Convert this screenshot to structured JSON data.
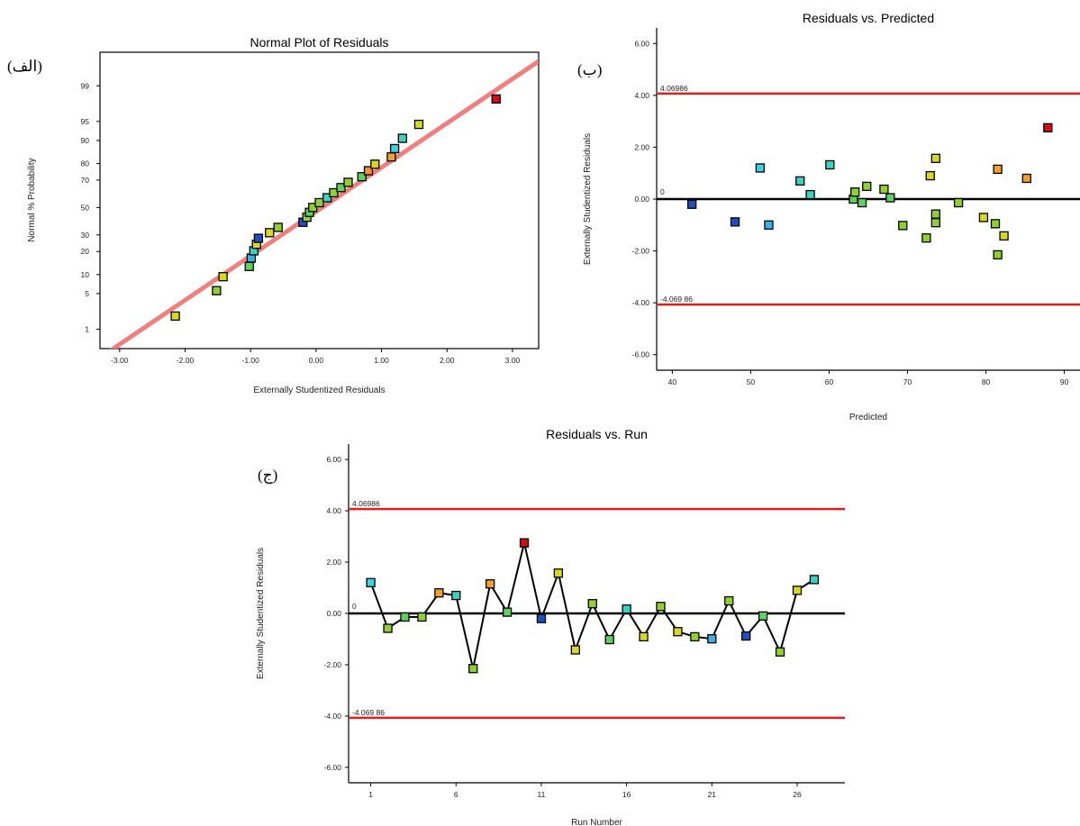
{
  "figure": {
    "panel_labels": [
      "(الف)",
      "(ب)",
      "(ج)"
    ]
  },
  "chart_data": [
    {
      "type": "scatter",
      "title": "Normal Plot of Residuals",
      "xlabel": "Externally Studentized Residuals",
      "ylabel": "Normal % Probability",
      "xlim": [
        -3.3,
        3.4
      ],
      "xticks": [
        -3.0,
        -2.0,
        -1.0,
        0.0,
        1.0,
        2.0,
        3.0
      ],
      "xtick_labels": [
        "-3.00",
        "-2.00",
        "-1.00",
        "0.00",
        "1.00",
        "2.00",
        "3.00"
      ],
      "yticks": [
        1,
        5,
        10,
        20,
        30,
        50,
        70,
        80,
        90,
        95,
        99
      ],
      "yscale": "normal-probability",
      "reference_line": {
        "color": "#f08080",
        "from": [
          -3.3,
          -3.3
        ],
        "to": [
          3.4,
          3.4
        ]
      },
      "points": [
        {
          "x": -2.15,
          "y": 1.9,
          "color": "#d8d820"
        },
        {
          "x": -1.52,
          "y": 5.6,
          "color": "#90d030"
        },
        {
          "x": -1.42,
          "y": 9.3,
          "color": "#d8d820"
        },
        {
          "x": -1.02,
          "y": 13.0,
          "color": "#60d060"
        },
        {
          "x": -0.99,
          "y": 16.7,
          "color": "#40b0e0"
        },
        {
          "x": -0.95,
          "y": 20.4,
          "color": "#40d0c0"
        },
        {
          "x": -0.91,
          "y": 24.1,
          "color": "#d8d820"
        },
        {
          "x": -0.88,
          "y": 27.8,
          "color": "#2050c0"
        },
        {
          "x": -0.71,
          "y": 31.5,
          "color": "#d8d820"
        },
        {
          "x": -0.58,
          "y": 35.2,
          "color": "#90d030"
        },
        {
          "x": -0.2,
          "y": 38.9,
          "color": "#2050c0"
        },
        {
          "x": -0.14,
          "y": 42.6,
          "color": "#90d030"
        },
        {
          "x": -0.1,
          "y": 46.3,
          "color": "#60d060"
        },
        {
          "x": -0.05,
          "y": 50.0,
          "color": "#90d030"
        },
        {
          "x": 0.05,
          "y": 53.7,
          "color": "#90d030"
        },
        {
          "x": 0.17,
          "y": 57.4,
          "color": "#40d0c0"
        },
        {
          "x": 0.27,
          "y": 61.1,
          "color": "#90d030"
        },
        {
          "x": 0.38,
          "y": 64.8,
          "color": "#60d060"
        },
        {
          "x": 0.49,
          "y": 68.5,
          "color": "#90d030"
        },
        {
          "x": 0.7,
          "y": 72.2,
          "color": "#60d060"
        },
        {
          "x": 0.8,
          "y": 75.9,
          "color": "#f09040"
        },
        {
          "x": 0.9,
          "y": 79.6,
          "color": "#d8d820"
        },
        {
          "x": 1.15,
          "y": 83.3,
          "color": "#f0a030"
        },
        {
          "x": 1.2,
          "y": 87.0,
          "color": "#40d0e0"
        },
        {
          "x": 1.32,
          "y": 90.7,
          "color": "#40d0c0"
        },
        {
          "x": 1.57,
          "y": 94.4,
          "color": "#d8d820"
        },
        {
          "x": 2.75,
          "y": 98.1,
          "color": "#d01010"
        }
      ]
    },
    {
      "type": "scatter",
      "title": "Residuals vs. Predicted",
      "xlabel": "Predicted",
      "ylabel": "Externally Studentized Residuals",
      "xlim": [
        38,
        92
      ],
      "ylim": [
        -6.6,
        6.6
      ],
      "xticks": [
        40,
        50,
        60,
        70,
        80,
        90
      ],
      "xtick_labels": [
        "40",
        "50",
        "60",
        "70",
        "80",
        "90"
      ],
      "yticks": [
        -6,
        -4,
        -2,
        0,
        2,
        4,
        6
      ],
      "ytick_labels": [
        "-6.00",
        "-4.00",
        "-2.00",
        "0.00",
        "2.00",
        "4.00",
        "6.00"
      ],
      "limit_lines": [
        {
          "y": 4.06986,
          "label": "4.06986",
          "color": "#e02020"
        },
        {
          "y": -4.06986,
          "label": "-4.069 86",
          "color": "#e02020"
        }
      ],
      "zero_line": {
        "y": 0,
        "label": "0",
        "color": "#000000"
      },
      "points": [
        {
          "x": 42.5,
          "y": -0.2,
          "color": "#2050c0"
        },
        {
          "x": 48.0,
          "y": -0.88,
          "color": "#2050c0"
        },
        {
          "x": 51.2,
          "y": 1.2,
          "color": "#40d0e0"
        },
        {
          "x": 52.3,
          "y": -1.0,
          "color": "#40b0e0"
        },
        {
          "x": 56.3,
          "y": 0.7,
          "color": "#40d0c0"
        },
        {
          "x": 57.6,
          "y": 0.17,
          "color": "#40d0c0"
        },
        {
          "x": 60.1,
          "y": 1.32,
          "color": "#40d0c0"
        },
        {
          "x": 63.1,
          "y": 0.0,
          "color": "#60d060"
        },
        {
          "x": 63.3,
          "y": 0.27,
          "color": "#90d030"
        },
        {
          "x": 64.2,
          "y": -0.14,
          "color": "#60d060"
        },
        {
          "x": 64.8,
          "y": 0.49,
          "color": "#90d030"
        },
        {
          "x": 67.0,
          "y": 0.38,
          "color": "#90d030"
        },
        {
          "x": 67.8,
          "y": 0.05,
          "color": "#60d060"
        },
        {
          "x": 69.4,
          "y": -1.02,
          "color": "#90d030"
        },
        {
          "x": 72.4,
          "y": -1.5,
          "color": "#90d030"
        },
        {
          "x": 72.9,
          "y": 0.9,
          "color": "#d8d820"
        },
        {
          "x": 73.6,
          "y": 1.57,
          "color": "#d8d820"
        },
        {
          "x": 73.6,
          "y": -0.58,
          "color": "#90d030"
        },
        {
          "x": 73.6,
          "y": -0.91,
          "color": "#90d030"
        },
        {
          "x": 76.5,
          "y": -0.14,
          "color": "#90d030"
        },
        {
          "x": 79.7,
          "y": -0.71,
          "color": "#d8d820"
        },
        {
          "x": 81.2,
          "y": -0.95,
          "color": "#90d030"
        },
        {
          "x": 81.5,
          "y": -2.15,
          "color": "#90d030"
        },
        {
          "x": 81.5,
          "y": 1.15,
          "color": "#f0a030"
        },
        {
          "x": 82.3,
          "y": -1.42,
          "color": "#d8d820"
        },
        {
          "x": 85.2,
          "y": 0.8,
          "color": "#f0a030"
        },
        {
          "x": 87.9,
          "y": 2.75,
          "color": "#d01010"
        }
      ]
    },
    {
      "type": "line",
      "title": "Residuals vs. Run",
      "xlabel": "Run Number",
      "ylabel": "Externally Studentized Residuals",
      "xlim": [
        -0.3,
        28.8
      ],
      "ylim": [
        -6.6,
        6.6
      ],
      "xticks": [
        1,
        6,
        11,
        16,
        21,
        26
      ],
      "xtick_labels": [
        "1",
        "6",
        "11",
        "16",
        "21",
        "26"
      ],
      "yticks": [
        -6,
        -4,
        -2,
        0,
        2,
        4,
        6
      ],
      "ytick_labels": [
        "-6.00",
        "-4.00",
        "-2.00",
        "0.00",
        "2.00",
        "4.00",
        "6.00"
      ],
      "limit_lines": [
        {
          "y": 4.06986,
          "label": "4.06986",
          "color": "#e02020"
        },
        {
          "y": -4.06986,
          "label": "-4.069 86",
          "color": "#e02020"
        }
      ],
      "zero_line": {
        "y": 0,
        "label": "0",
        "color": "#000000"
      },
      "x": [
        1,
        2,
        3,
        4,
        5,
        6,
        7,
        8,
        9,
        10,
        11,
        12,
        13,
        14,
        15,
        16,
        17,
        18,
        19,
        20,
        21,
        22,
        23,
        24,
        25,
        26,
        27
      ],
      "values": [
        1.2,
        -0.58,
        -0.14,
        -0.14,
        0.8,
        0.7,
        -2.15,
        1.15,
        0.05,
        2.75,
        -0.2,
        1.57,
        -1.42,
        0.38,
        -1.02,
        0.17,
        -0.91,
        0.27,
        -0.71,
        -0.91,
        -0.99,
        0.49,
        -0.88,
        -0.1,
        -1.5,
        0.9,
        1.32
      ],
      "colors": [
        "#40d0e0",
        "#90d030",
        "#60d060",
        "#90d030",
        "#f0a030",
        "#40d0c0",
        "#90d030",
        "#f0a030",
        "#60d060",
        "#d01010",
        "#2050c0",
        "#d8d820",
        "#d8d820",
        "#90d030",
        "#60d060",
        "#40d0c0",
        "#d8d820",
        "#90d030",
        "#d8d820",
        "#90d030",
        "#40b0e0",
        "#90d030",
        "#2050c0",
        "#60d060",
        "#90d030",
        "#d8d820",
        "#40d0c0"
      ]
    }
  ]
}
